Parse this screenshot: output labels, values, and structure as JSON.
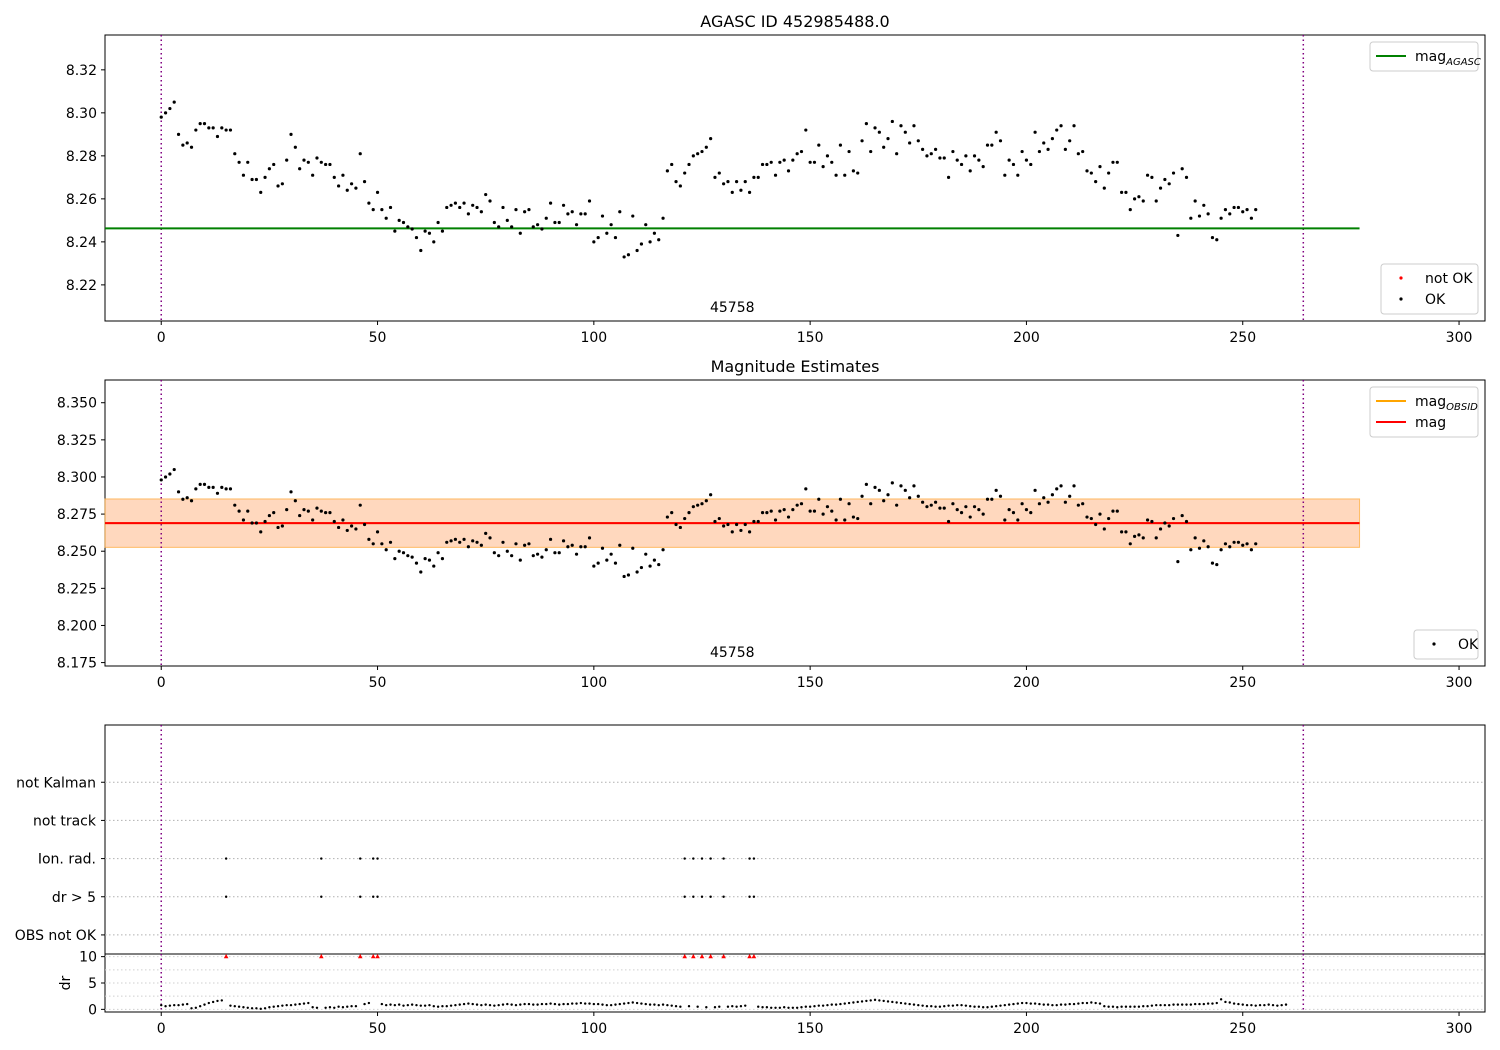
{
  "chart_data": [
    {
      "type": "scatter",
      "title": "AGASC ID 452985488.0",
      "xlim": [
        -13,
        306
      ],
      "ylim": [
        8.2032,
        8.3362
      ],
      "xticks": [
        0,
        50,
        100,
        150,
        200,
        250,
        300
      ],
      "yticks": [
        8.22,
        8.24,
        8.26,
        8.28,
        8.3,
        8.32
      ],
      "ytick_decimals": 2,
      "annotation": {
        "text": "45758",
        "x": 132
      },
      "vlines": [
        0,
        264
      ],
      "hlines": [
        {
          "name": "mag_AGASC",
          "y": 8.2463,
          "x": [
            -13,
            277
          ],
          "color": "#008000"
        }
      ],
      "legends": [
        {
          "position": "top-right",
          "entries": [
            {
              "label": "mag",
              "sub": "AGASC",
              "kind": "line",
              "color": "#008000"
            }
          ]
        },
        {
          "position": "bottom-right",
          "entries": [
            {
              "label": "not OK",
              "kind": "point",
              "color": "#ff0000"
            },
            {
              "label": "OK",
              "kind": "point",
              "color": "#000000"
            }
          ]
        }
      ],
      "series": [
        {
          "name": "OK",
          "color": "#000000",
          "x_start": 0,
          "x_step": 1,
          "values": [
            8.298,
            8.3,
            8.302,
            8.305,
            8.29,
            8.285,
            8.286,
            8.284,
            8.292,
            8.295,
            8.295,
            8.293,
            8.293,
            8.289,
            8.293,
            8.292,
            8.292,
            8.281,
            8.277,
            8.271,
            8.277,
            8.269,
            8.269,
            8.263,
            8.27,
            8.274,
            8.276,
            8.266,
            8.267,
            8.278,
            8.29,
            8.284,
            8.274,
            8.278,
            8.277,
            8.271,
            8.279,
            8.277,
            8.276,
            8.276,
            8.27,
            8.266,
            8.271,
            8.264,
            8.267,
            8.265,
            8.281,
            8.268,
            8.258,
            8.255,
            8.263,
            8.255,
            8.251,
            8.256,
            8.245,
            8.25,
            8.249,
            8.247,
            8.246,
            8.242,
            8.236,
            8.245,
            8.244,
            8.24,
            8.249,
            8.245,
            8.256,
            8.257,
            8.258,
            8.256,
            8.258,
            8.253,
            8.257,
            8.256,
            8.254,
            8.262,
            8.259,
            8.249,
            8.247,
            8.256,
            8.25,
            8.247,
            8.255,
            8.244,
            8.254,
            8.255,
            8.247,
            8.248,
            8.246,
            8.251,
            8.258,
            8.249,
            8.249,
            8.257,
            8.253,
            8.254,
            8.248,
            8.253,
            8.253,
            8.259,
            8.24,
            8.242,
            8.252,
            8.244,
            8.248,
            8.242,
            8.254,
            8.233,
            8.234,
            8.252,
            8.236,
            8.239,
            8.248,
            8.24,
            8.244,
            8.241,
            8.251,
            8.273,
            8.276,
            8.268,
            8.266,
            8.272,
            8.276,
            8.28,
            8.281,
            8.282,
            8.284,
            8.288,
            8.27,
            8.272,
            8.267,
            8.268,
            8.263,
            8.268,
            8.264,
            8.268,
            8.263,
            8.27,
            8.27,
            8.276,
            8.276,
            8.277,
            8.271,
            8.277,
            8.278,
            8.273,
            8.278,
            8.281,
            8.282,
            8.292,
            8.277,
            8.277,
            8.285,
            8.275,
            8.28,
            8.277,
            8.271,
            8.285,
            8.271,
            8.282,
            8.273,
            8.272,
            8.287,
            8.295,
            8.282,
            8.293,
            8.291,
            8.284,
            8.288,
            8.296,
            8.281,
            8.294,
            8.291,
            8.286,
            8.294,
            8.287,
            8.283,
            8.28,
            8.281,
            8.283,
            8.279,
            8.279,
            8.27,
            8.282,
            8.278,
            8.276,
            8.28,
            8.273,
            8.28,
            8.278,
            8.275,
            8.285,
            8.285,
            8.291,
            8.287,
            8.271,
            8.278,
            8.276,
            8.271,
            8.282,
            8.278,
            8.276,
            8.291,
            8.282,
            8.286,
            8.283,
            8.288,
            8.292,
            8.294,
            8.283,
            8.287,
            8.294,
            8.281,
            8.282,
            8.273,
            8.272,
            8.268,
            8.275,
            8.265,
            8.272,
            8.277,
            8.277,
            8.263,
            8.263,
            8.255,
            8.26,
            8.261,
            8.259,
            8.271,
            8.27,
            8.259,
            8.265,
            8.269,
            8.267,
            8.272,
            8.243,
            8.274,
            8.27,
            8.251,
            8.259,
            8.252,
            8.257,
            8.253,
            8.242,
            8.241,
            8.251,
            8.255,
            8.253,
            8.256,
            8.256,
            8.254,
            8.255,
            8.251,
            8.255
          ]
        }
      ]
    },
    {
      "type": "scatter",
      "title": "Magnitude Estimates",
      "xlim": [
        -13,
        306
      ],
      "ylim": [
        8.1727,
        8.3653
      ],
      "xticks": [
        0,
        50,
        100,
        150,
        200,
        250,
        300
      ],
      "yticks": [
        8.175,
        8.2,
        8.225,
        8.25,
        8.275,
        8.3,
        8.325,
        8.35
      ],
      "ytick_decimals": 3,
      "annotation": {
        "text": "45758",
        "x": 132
      },
      "vlines": [
        0,
        264
      ],
      "bands": [
        {
          "y": [
            8.2526,
            8.2852
          ],
          "x": [
            -13,
            277
          ],
          "color": "#ffc0cb",
          "opacity": 0.45
        },
        {
          "y": [
            8.2526,
            8.2852
          ],
          "x": [
            -13,
            277
          ],
          "color": "#ffa500",
          "opacity": 0.18
        }
      ],
      "hlines": [
        {
          "name": "mag_OBSID",
          "y": 8.2689,
          "x": [
            -13,
            277
          ],
          "color": "#ffa500"
        },
        {
          "name": "mag",
          "y": 8.2689,
          "x": [
            -13,
            277
          ],
          "color": "#ff0000"
        }
      ],
      "legends": [
        {
          "position": "top-right",
          "entries": [
            {
              "label": "mag",
              "sub": "OBSID",
              "kind": "line",
              "color": "#ffa500"
            },
            {
              "label": "mag",
              "sub": "",
              "kind": "line",
              "color": "#ff0000"
            }
          ]
        },
        {
          "position": "bottom-right",
          "entries": [
            {
              "label": "OK",
              "kind": "point",
              "color": "#000000"
            }
          ]
        }
      ],
      "series": [
        {
          "name": "OK",
          "color": "#000000",
          "x_start": 0,
          "x_step": 1,
          "same_as_panel": 0
        }
      ]
    },
    {
      "type": "scatter",
      "title": "",
      "xlim": [
        -13,
        306
      ],
      "ylim": [
        -0.5,
        5.5
      ],
      "xticks": [],
      "categories": [
        "OBS not OK",
        "dr > 5",
        "Ion. rad.",
        "not track",
        "not Kalman"
      ],
      "vlines": [
        0,
        264
      ],
      "series": [
        {
          "name": "not Kalman",
          "color": "#000000",
          "x": []
        },
        {
          "name": "not track",
          "color": "#000000",
          "x": []
        },
        {
          "name": "Ion. rad.",
          "color": "#000000",
          "x": [
            15,
            37,
            46,
            49,
            50,
            121,
            123,
            125,
            127,
            130,
            136,
            137
          ]
        },
        {
          "name": "dr > 5",
          "color": "#000000",
          "x": [
            15,
            37,
            46,
            49,
            50,
            121,
            123,
            125,
            127,
            130,
            136,
            137
          ]
        },
        {
          "name": "OBS not OK",
          "color": "#000000",
          "x": []
        }
      ]
    },
    {
      "type": "scatter",
      "title": "",
      "xlabel": "",
      "ylabel": "dr",
      "xlim": [
        -13,
        306
      ],
      "ylim": [
        -0.5,
        10.5
      ],
      "xticks": [
        0,
        50,
        100,
        150,
        200,
        250,
        300
      ],
      "yticks": [
        0,
        5,
        10
      ],
      "ytick_decimals": 0,
      "vlines": [
        0,
        264
      ],
      "series": [
        {
          "name": "dr",
          "color": "#000000",
          "x_start": 0,
          "x_step": 1,
          "values": [
            0.8,
            0.6,
            0.7,
            0.8,
            0.8,
            0.9,
            1.0,
            0.2,
            0.3,
            0.6,
            0.9,
            1.2,
            1.4,
            1.6,
            1.7,
            10,
            0.7,
            0.6,
            0.5,
            0.4,
            0.3,
            0.2,
            0.2,
            0.1,
            0.2,
            0.4,
            0.5,
            0.6,
            0.7,
            0.8,
            0.8,
            0.9,
            1.0,
            1.1,
            1.2,
            0.4,
            0.3,
            10,
            0.3,
            0.4,
            0.3,
            0.5,
            0.4,
            0.5,
            0.6,
            0.6,
            10,
            1.0,
            1.2,
            10,
            10,
            1.0,
            0.8,
            0.9,
            0.8,
            0.9,
            0.7,
            0.8,
            0.9,
            0.8,
            0.7,
            0.7,
            0.8,
            0.6,
            0.5,
            0.6,
            0.6,
            0.7,
            0.8,
            0.9,
            1.0,
            1.1,
            1.0,
            0.9,
            0.8,
            0.9,
            0.8,
            0.7,
            0.8,
            0.9,
            1.0,
            0.9,
            0.8,
            0.9,
            1.0,
            1.0,
            0.9,
            0.9,
            1.0,
            1.0,
            1.1,
            1.0,
            0.9,
            1.0,
            1.0,
            1.1,
            1.1,
            1.2,
            1.1,
            1.1,
            1.0,
            1.0,
            0.9,
            0.8,
            0.8,
            0.9,
            1.0,
            1.1,
            1.2,
            1.3,
            1.2,
            1.1,
            1.0,
            0.9,
            0.9,
            0.8,
            0.9,
            0.8,
            0.7,
            0.6,
            0.5,
            10,
            0.6,
            10,
            0.5,
            10,
            0.4,
            10,
            0.4,
            0.5,
            10,
            0.5,
            0.6,
            0.5,
            0.6,
            0.7,
            10,
            10,
            0.5,
            0.4,
            0.4,
            0.3,
            0.3,
            0.3,
            0.4,
            0.3,
            0.3,
            0.3,
            0.4,
            0.5,
            0.5,
            0.6,
            0.7,
            0.7,
            0.8,
            0.9,
            0.9,
            1.0,
            1.1,
            1.2,
            1.3,
            1.4,
            1.5,
            1.6,
            1.7,
            1.8,
            1.7,
            1.6,
            1.5,
            1.4,
            1.3,
            1.2,
            1.1,
            1.0,
            0.9,
            0.8,
            0.7,
            0.6,
            0.6,
            0.5,
            0.5,
            0.6,
            0.7,
            0.7,
            0.8,
            0.8,
            0.7,
            0.6,
            0.5,
            0.5,
            0.4,
            0.4,
            0.5,
            0.6,
            0.7,
            0.8,
            0.9,
            1.0,
            1.1,
            1.2,
            1.2,
            1.1,
            1.1,
            1.0,
            0.9,
            0.9,
            0.8,
            0.8,
            0.9,
            0.9,
            1.0,
            1.0,
            1.1,
            1.2,
            1.2,
            1.3,
            1.2,
            1.1,
            0.6,
            0.5,
            0.5,
            0.4,
            0.5,
            0.5,
            0.5,
            0.5,
            0.5,
            0.6,
            0.6,
            0.7,
            0.8,
            0.8,
            0.8,
            0.8,
            0.9,
            0.9,
            0.9,
            0.9,
            0.9,
            1.0,
            1.0,
            1.0,
            1.1,
            1.1,
            1.2,
            1.9,
            1.4,
            1.3,
            1.1,
            1.0,
            0.9,
            0.8,
            0.8,
            0.7,
            0.8,
            0.8,
            0.9,
            0.8,
            0.7,
            0.8,
            0.9
          ]
        },
        {
          "name": "dr > 5",
          "color": "#ff0000",
          "marker": "triangle",
          "x": [
            15,
            37,
            46,
            49,
            50,
            121,
            123,
            125,
            127,
            130,
            136,
            137
          ],
          "values": [
            10,
            10,
            10,
            10,
            10,
            10,
            10,
            10,
            10,
            10,
            10,
            10
          ]
        }
      ]
    }
  ]
}
